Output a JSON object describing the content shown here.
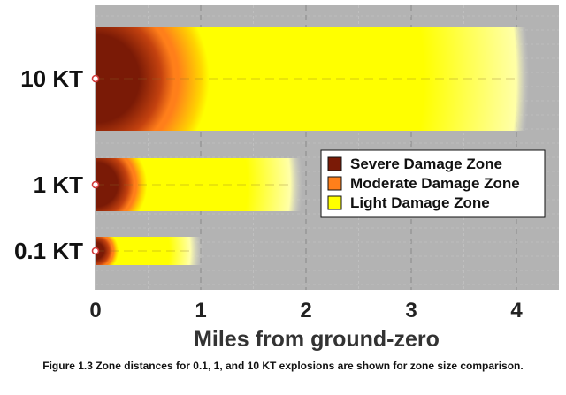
{
  "chart_data": {
    "type": "bar",
    "xlabel": "Miles from ground-zero",
    "xlim": [
      0,
      4.35
    ],
    "xticks": [
      0,
      1,
      2,
      3,
      4
    ],
    "tick_labels": [
      "0",
      "1",
      "2",
      "3",
      "4"
    ],
    "grid": true,
    "legend_position": "right",
    "zones": [
      {
        "name": "Severe Damage Zone",
        "color": "#7a1a06"
      },
      {
        "name": "Moderate Damage Zone",
        "color": "#ff7f1a"
      },
      {
        "name": "Light Damage Zone",
        "color": "#ffff00"
      }
    ],
    "categories": [
      {
        "label": "10 KT",
        "severe": 0.5,
        "moderate": 1.0,
        "light": 4.0
      },
      {
        "label": "1 KT",
        "severe": 0.25,
        "moderate": 0.45,
        "light": 1.85
      },
      {
        "label": "0.1 KT",
        "severe": 0.1,
        "moderate": 0.2,
        "light": 0.9
      }
    ]
  },
  "caption": "Figure 1.3 Zone distances for 0.1, 1, and 10 KT explosions are shown for zone size comparison."
}
